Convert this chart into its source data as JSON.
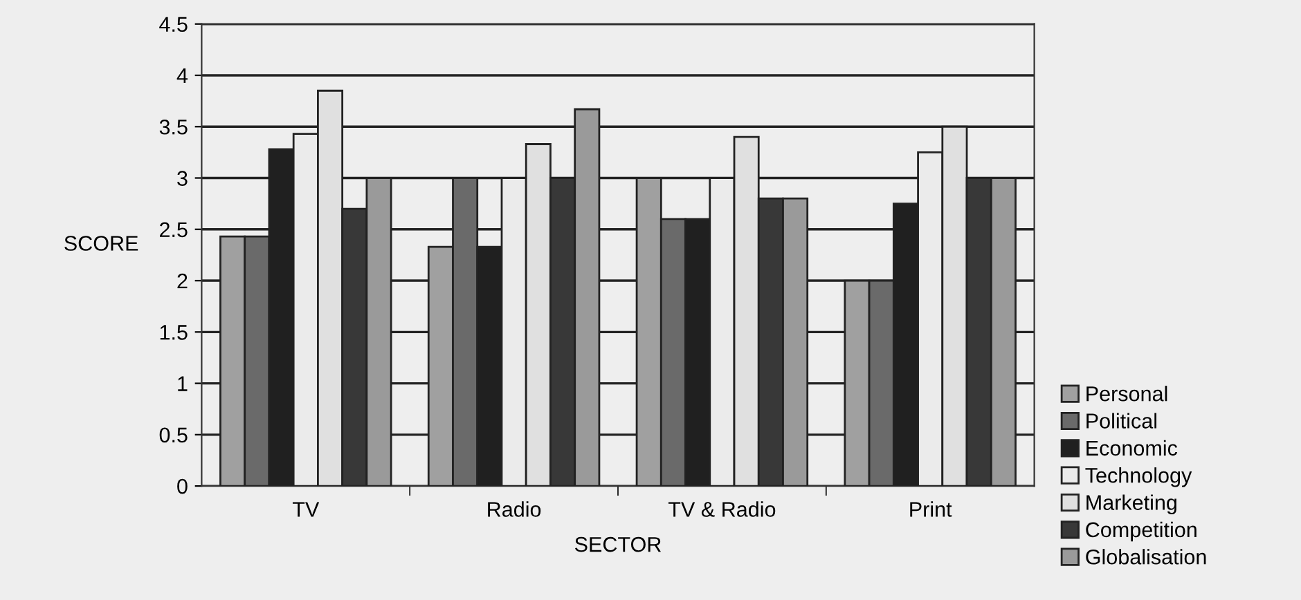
{
  "chart_data": {
    "type": "bar",
    "xlabel": "SECTOR",
    "ylabel": "SCORE",
    "categories": [
      "TV",
      "Radio",
      "TV & Radio",
      "Print"
    ],
    "series": [
      {
        "name": "Personal",
        "color": "#a0a0a0",
        "values": [
          2.43,
          2.33,
          3.0,
          2.0
        ]
      },
      {
        "name": "Political",
        "color": "#6a6a6a",
        "values": [
          2.43,
          3.0,
          2.6,
          2.0
        ]
      },
      {
        "name": "Economic",
        "color": "#202020",
        "values": [
          3.28,
          2.33,
          2.6,
          2.75
        ]
      },
      {
        "name": "Technology",
        "color": "#ebebeb",
        "values": [
          3.43,
          3.0,
          3.0,
          3.25
        ]
      },
      {
        "name": "Marketing",
        "color": "#e0e0e0",
        "values": [
          3.85,
          3.33,
          3.4,
          3.5
        ]
      },
      {
        "name": "Competition",
        "color": "#383838",
        "values": [
          2.7,
          3.0,
          2.8,
          3.0
        ]
      },
      {
        "name": "Globalisation",
        "color": "#9a9a9a",
        "values": [
          3.0,
          3.67,
          2.8,
          3.0
        ]
      }
    ],
    "ylim": [
      0,
      4.5
    ],
    "yticks": [
      0,
      0.5,
      1,
      1.5,
      2,
      2.5,
      3,
      3.5,
      4,
      4.5
    ],
    "grid": "y",
    "legend": "bottom right"
  }
}
